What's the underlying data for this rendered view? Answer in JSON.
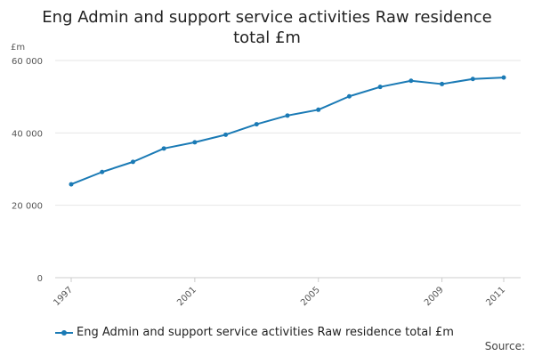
{
  "chart_data": {
    "type": "line",
    "title": "Eng Admin and support service activities Raw residence total £m",
    "title_lines": [
      "Eng Admin and support service activities Raw residence",
      "total £m"
    ],
    "ylabel": "£m",
    "xlabel": "",
    "ylim": [
      0,
      60000
    ],
    "yticks": [
      0,
      20000,
      40000,
      60000
    ],
    "ytick_labels": [
      "0",
      "20 000",
      "40 000",
      "60 000"
    ],
    "xlim": [
      1997,
      2011
    ],
    "xticks": [
      1997,
      2001,
      2005,
      2009,
      2011
    ],
    "xtick_labels": [
      "1997",
      "2001",
      "2005",
      "2009",
      "2011"
    ],
    "grid": true,
    "legend_position": "bottom-left",
    "series": [
      {
        "name": "Eng Admin and support service activities Raw residence total £m",
        "color": "#1a7ab5",
        "x": [
          1997,
          1998,
          1999,
          2000,
          2001,
          2002,
          2003,
          2004,
          2005,
          2006,
          2007,
          2008,
          2009,
          2010,
          2011
        ],
        "values": [
          25800,
          29200,
          32000,
          35700,
          37400,
          39500,
          42400,
          44800,
          46400,
          50100,
          52700,
          54400,
          53500,
          54900,
          55300
        ]
      }
    ]
  },
  "footer": {
    "source_label": "Source:"
  }
}
